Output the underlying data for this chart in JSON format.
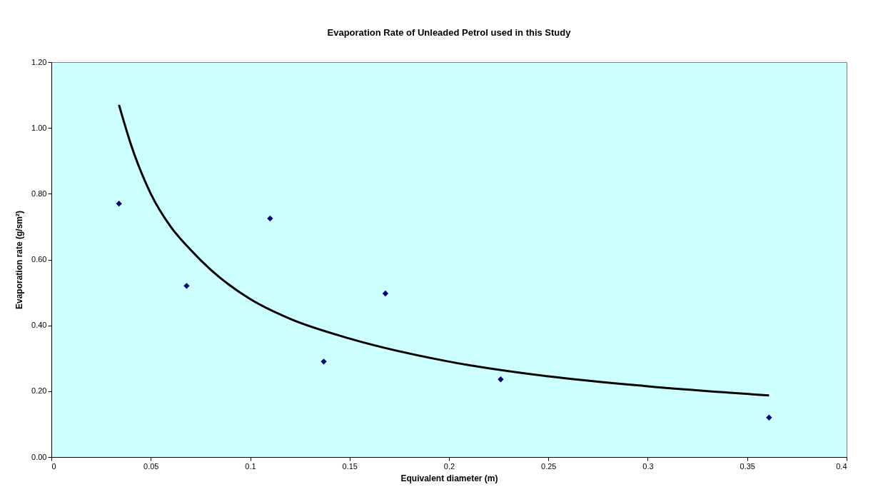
{
  "chart_data": {
    "type": "scatter",
    "title": "Evaporation Rate of Unleaded Petrol used in this Study",
    "xlabel": "Equivalent diameter (m)",
    "ylabel": "Evaporation rate (g/sm²)",
    "series": [
      {
        "color": "#000080",
        "marker": "diamond",
        "x": [
          0.034,
          0.068,
          0.11,
          0.137,
          0.168,
          0.226,
          0.361
        ],
        "values": [
          0.77,
          0.52,
          0.725,
          0.29,
          0.497,
          0.236,
          0.12
        ]
      },
      {
        "type": "line",
        "color": "#000000",
        "line_style": "solid",
        "marker": "none",
        "x": [
          0.034,
          0.04,
          0.05,
          0.06,
          0.07,
          0.08,
          0.1,
          0.12,
          0.15,
          0.2,
          0.25,
          0.3,
          0.361
        ],
        "values": [
          1.07,
          0.95,
          0.8,
          0.7,
          0.63,
          0.57,
          0.48,
          0.42,
          0.36,
          0.29,
          0.245,
          0.215,
          0.187
        ]
      }
    ],
    "xlim": [
      0,
      0.4
    ],
    "xticks": [
      0,
      0.05,
      0.1,
      0.15,
      0.2,
      0.25,
      0.3,
      0.35,
      0.4
    ],
    "ylim": [
      0,
      1.2
    ],
    "yticks": [
      {
        "value": 0,
        "label": "0.00"
      },
      {
        "value": 0.2,
        "label": "0.20"
      },
      {
        "value": 0.4,
        "label": "0.40"
      },
      {
        "value": 0.6,
        "label": "0.60"
      },
      {
        "value": 0.8,
        "label": "0.80"
      },
      {
        "value": 1.0,
        "label": "1.00"
      },
      {
        "value": 1.2,
        "label": "1.20"
      }
    ],
    "grid": false
  }
}
